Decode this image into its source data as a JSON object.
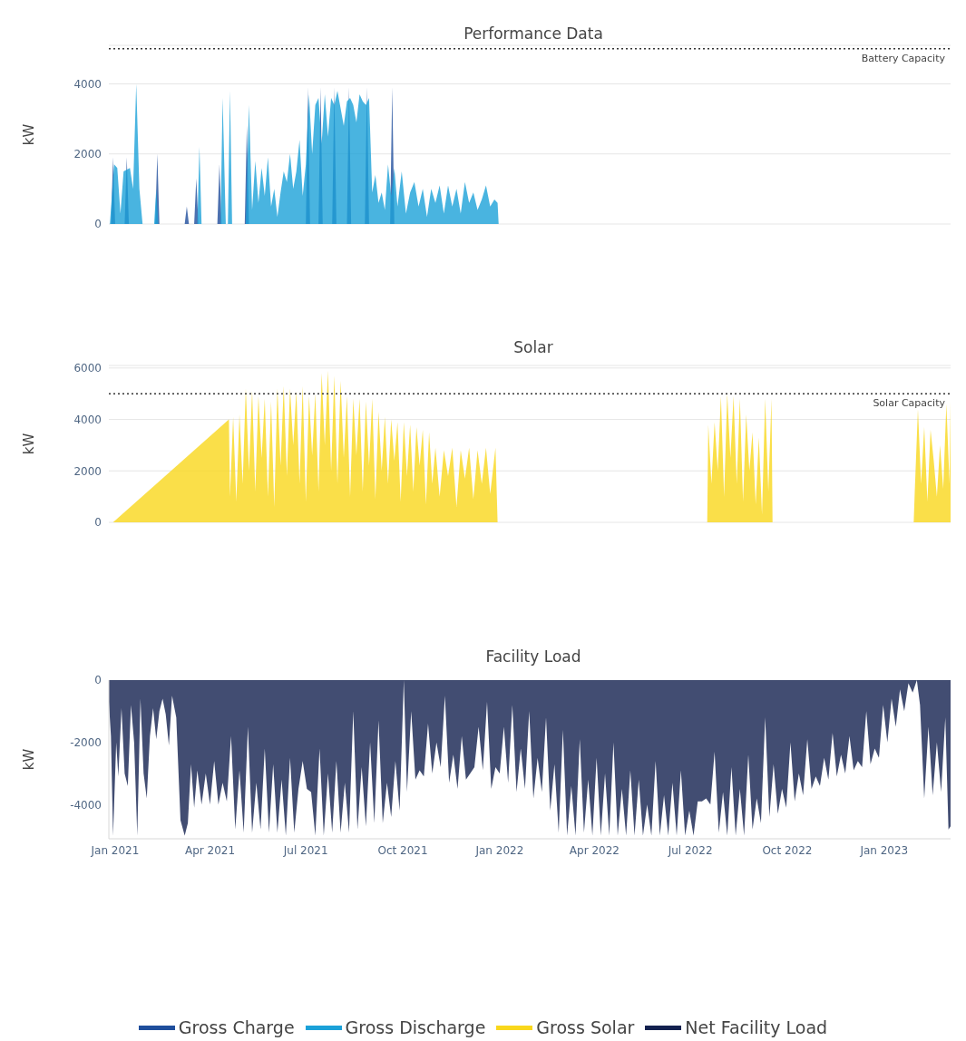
{
  "chart_data": [
    {
      "type": "area",
      "title": "Performance Data",
      "ylabel": "kW",
      "xlim": [
        "2020-12-26",
        "2023-03-05"
      ],
      "ylim": [
        0,
        5100
      ],
      "yticks": [
        0,
        2000,
        4000
      ],
      "grid": "y",
      "legend": "bottom",
      "tick_labels": "y",
      "ref_lines": [
        {
          "axis": "y",
          "value": 5000,
          "label": "Battery Capacity",
          "color": "#333333",
          "line_style": "dotted"
        }
      ],
      "series": [
        {
          "name": "Gross Charge",
          "color": "#1f4e9c",
          "x": [
            "2020-12-28",
            "2020-12-30",
            "2021-01-01",
            "2021-01-10",
            "2021-01-12",
            "2021-01-14",
            "2021-02-08",
            "2021-02-10",
            "2021-02-12",
            "2021-03-08",
            "2021-03-10",
            "2021-03-12",
            "2021-03-17",
            "2021-03-19",
            "2021-03-21",
            "2021-04-08",
            "2021-04-10",
            "2021-04-12",
            "2021-05-04",
            "2021-05-06",
            "2021-05-08",
            "2021-07-01",
            "2021-07-03",
            "2021-07-05",
            "2021-07-13",
            "2021-07-15",
            "2021-07-17",
            "2021-07-26",
            "2021-07-28",
            "2021-07-30",
            "2021-08-09",
            "2021-08-11",
            "2021-08-13",
            "2021-08-26",
            "2021-08-28",
            "2021-08-30",
            "2021-09-19",
            "2021-09-21",
            "2021-09-23",
            "2023-03-05"
          ],
          "values": [
            0,
            1900,
            0,
            0,
            1900,
            0,
            0,
            2000,
            0,
            0,
            500,
            0,
            0,
            1300,
            0,
            0,
            1700,
            0,
            0,
            2800,
            0,
            0,
            3900,
            0,
            0,
            3900,
            0,
            0,
            3900,
            0,
            0,
            3900,
            0,
            0,
            3900,
            0,
            0,
            3900,
            0,
            0
          ]
        },
        {
          "name": "Gross Discharge",
          "color": "#1ba1d8",
          "x": [
            "2020-12-27",
            "2020-12-31",
            "2021-01-03",
            "2021-01-06",
            "2021-01-09",
            "2021-01-15",
            "2021-01-18",
            "2021-01-21",
            "2021-01-24",
            "2021-01-27",
            "2021-02-07",
            "2021-02-09",
            "2021-02-11",
            "2021-03-20",
            "2021-03-22",
            "2021-03-24",
            "2021-04-11",
            "2021-04-13",
            "2021-04-16",
            "2021-04-18",
            "2021-04-20",
            "2021-04-22",
            "2021-05-05",
            "2021-05-08",
            "2021-05-11",
            "2021-05-14",
            "2021-05-17",
            "2021-05-20",
            "2021-05-23",
            "2021-05-26",
            "2021-05-29",
            "2021-06-01",
            "2021-06-04",
            "2021-06-07",
            "2021-06-10",
            "2021-06-13",
            "2021-06-16",
            "2021-06-19",
            "2021-06-22",
            "2021-06-25",
            "2021-06-28",
            "2021-07-01",
            "2021-07-04",
            "2021-07-07",
            "2021-07-10",
            "2021-07-13",
            "2021-07-16",
            "2021-07-19",
            "2021-07-22",
            "2021-07-25",
            "2021-07-28",
            "2021-07-31",
            "2021-08-03",
            "2021-08-06",
            "2021-08-09",
            "2021-08-12",
            "2021-08-15",
            "2021-08-18",
            "2021-08-21",
            "2021-08-24",
            "2021-08-27",
            "2021-08-30",
            "2021-09-02",
            "2021-09-05",
            "2021-09-08",
            "2021-09-11",
            "2021-09-14",
            "2021-09-17",
            "2021-09-20",
            "2021-09-23",
            "2021-09-26",
            "2021-09-30",
            "2021-10-04",
            "2021-10-08",
            "2021-10-12",
            "2021-10-16",
            "2021-10-20",
            "2021-10-24",
            "2021-10-28",
            "2021-11-01",
            "2021-11-05",
            "2021-11-09",
            "2021-11-13",
            "2021-11-17",
            "2021-11-21",
            "2021-11-25",
            "2021-11-29",
            "2021-12-03",
            "2021-12-07",
            "2021-12-11",
            "2021-12-15",
            "2021-12-19",
            "2021-12-23",
            "2021-12-27",
            "2021-12-30",
            "2021-12-31",
            "2023-03-05"
          ],
          "values": [
            0,
            1700,
            1600,
            300,
            1500,
            1600,
            1000,
            4000,
            1000,
            0,
            0,
            1000,
            0,
            0,
            2200,
            0,
            0,
            3600,
            0,
            0,
            3800,
            0,
            0,
            3400,
            400,
            1800,
            600,
            1600,
            800,
            1900,
            500,
            1000,
            200,
            900,
            1500,
            1200,
            2000,
            1000,
            1500,
            2400,
            800,
            1700,
            3700,
            2000,
            3400,
            3600,
            2300,
            3700,
            2500,
            3600,
            3400,
            3800,
            3300,
            2800,
            3500,
            3600,
            3400,
            2900,
            3700,
            3500,
            3400,
            3600,
            900,
            1400,
            600,
            900,
            400,
            1700,
            800,
            1600,
            500,
            1500,
            300,
            900,
            1200,
            500,
            1000,
            200,
            1000,
            600,
            1100,
            300,
            1100,
            500,
            1000,
            300,
            1200,
            600,
            900,
            400,
            700,
            1100,
            500,
            700,
            600,
            0,
            0
          ]
        }
      ]
    },
    {
      "type": "area",
      "title": "Solar",
      "ylabel": "kW",
      "xlim": [
        "2020-12-26",
        "2023-03-05"
      ],
      "ylim": [
        0,
        6100
      ],
      "yticks": [
        0,
        2000,
        4000,
        6000
      ],
      "grid": "y",
      "legend": "bottom",
      "tick_labels": "y",
      "ref_lines": [
        {
          "axis": "y",
          "value": 5000,
          "label": "Solar Capacity",
          "color": "#333333",
          "line_style": "dotted"
        }
      ],
      "series": [
        {
          "name": "Gross Solar",
          "color": "#f9d71c",
          "x": [
            "2020-12-30",
            "2021-04-19",
            "2021-04-20",
            "2021-04-23",
            "2021-04-26",
            "2021-04-29",
            "2021-05-02",
            "2021-05-05",
            "2021-05-08",
            "2021-05-11",
            "2021-05-14",
            "2021-05-17",
            "2021-05-20",
            "2021-05-23",
            "2021-05-26",
            "2021-05-29",
            "2021-06-01",
            "2021-06-04",
            "2021-06-07",
            "2021-06-10",
            "2021-06-13",
            "2021-06-16",
            "2021-06-19",
            "2021-06-22",
            "2021-06-25",
            "2021-06-28",
            "2021-07-01",
            "2021-07-04",
            "2021-07-07",
            "2021-07-10",
            "2021-07-13",
            "2021-07-16",
            "2021-07-19",
            "2021-07-22",
            "2021-07-25",
            "2021-07-28",
            "2021-07-31",
            "2021-08-03",
            "2021-08-06",
            "2021-08-09",
            "2021-08-12",
            "2021-08-15",
            "2021-08-18",
            "2021-08-21",
            "2021-08-24",
            "2021-08-27",
            "2021-08-30",
            "2021-09-02",
            "2021-09-05",
            "2021-09-08",
            "2021-09-11",
            "2021-09-14",
            "2021-09-17",
            "2021-09-20",
            "2021-09-23",
            "2021-09-26",
            "2021-09-29",
            "2021-10-02",
            "2021-10-05",
            "2021-10-08",
            "2021-10-11",
            "2021-10-14",
            "2021-10-17",
            "2021-10-20",
            "2021-10-23",
            "2021-10-26",
            "2021-10-29",
            "2021-11-01",
            "2021-11-05",
            "2021-11-09",
            "2021-11-13",
            "2021-11-17",
            "2021-11-21",
            "2021-11-25",
            "2021-11-29",
            "2021-12-03",
            "2021-12-07",
            "2021-12-11",
            "2021-12-15",
            "2021-12-19",
            "2021-12-23",
            "2021-12-28",
            "2021-12-30",
            "2022-07-17",
            "2022-07-18",
            "2022-07-21",
            "2022-07-24",
            "2022-07-27",
            "2022-07-30",
            "2022-08-02",
            "2022-08-05",
            "2022-08-08",
            "2022-08-11",
            "2022-08-14",
            "2022-08-17",
            "2022-08-20",
            "2022-08-23",
            "2022-08-26",
            "2022-08-29",
            "2022-09-01",
            "2022-09-04",
            "2022-09-07",
            "2022-09-10",
            "2022-09-13",
            "2022-09-16",
            "2022-09-17",
            "2023-01-29",
            "2023-01-30",
            "2023-02-02",
            "2023-02-05",
            "2023-02-08",
            "2023-02-11",
            "2023-02-14",
            "2023-02-17",
            "2023-02-20",
            "2023-02-23",
            "2023-02-26",
            "2023-03-01",
            "2023-03-04",
            "2023-03-05"
          ],
          "values": [
            0,
            4000,
            1000,
            4100,
            800,
            4200,
            1500,
            5200,
            2000,
            5100,
            1200,
            4900,
            2500,
            4800,
            1000,
            4700,
            600,
            5200,
            2200,
            5300,
            1800,
            5200,
            3000,
            5100,
            1500,
            5300,
            800,
            4900,
            2600,
            5000,
            1200,
            5800,
            3000,
            5900,
            2000,
            5700,
            1500,
            5500,
            2500,
            4900,
            1000,
            4800,
            2600,
            4800,
            1200,
            4700,
            2200,
            4800,
            900,
            4300,
            2000,
            4100,
            1500,
            4000,
            2400,
            3900,
            800,
            3900,
            1800,
            3800,
            1200,
            3700,
            2200,
            3600,
            700,
            3500,
            1500,
            2900,
            1000,
            2800,
            1800,
            2900,
            600,
            2800,
            1700,
            2900,
            900,
            2800,
            1500,
            2900,
            1100,
            2900,
            0,
            0,
            3800,
            1500,
            3900,
            2000,
            4900,
            1000,
            5000,
            2500,
            4900,
            1500,
            4800,
            800,
            4200,
            2000,
            3500,
            700,
            3300,
            300,
            4800,
            1200,
            4800,
            0,
            0,
            1200,
            4400,
            1500,
            3700,
            800,
            3600,
            2400,
            1000,
            3000,
            1300,
            4600,
            1500,
            4700
          ]
        }
      ]
    },
    {
      "type": "area",
      "title": "Facility Load",
      "ylabel": "kW",
      "xlim": [
        "2020-12-26",
        "2023-03-05"
      ],
      "xticks": [
        {
          "value": "2021-01-01",
          "label": "Jan 2021"
        },
        {
          "value": "2021-04-01",
          "label": "Apr 2021"
        },
        {
          "value": "2021-07-01",
          "label": "Jul 2021"
        },
        {
          "value": "2021-10-01",
          "label": "Oct 2021"
        },
        {
          "value": "2022-01-01",
          "label": "Jan 2022"
        },
        {
          "value": "2022-04-01",
          "label": "Apr 2022"
        },
        {
          "value": "2022-07-01",
          "label": "Jul 2022"
        },
        {
          "value": "2022-10-01",
          "label": "Oct 2022"
        },
        {
          "value": "2023-01-01",
          "label": "Jan 2023"
        }
      ],
      "ylim": [
        -5100,
        0
      ],
      "yticks": [
        -4000,
        -2000,
        0
      ],
      "legend": "bottom",
      "series": [
        {
          "name": "Net Facility Load",
          "color": "#13214f",
          "x": [
            "2020-12-26",
            "2020-12-28",
            "2020-12-30",
            "2021-01-02",
            "2021-01-04",
            "2021-01-07",
            "2021-01-10",
            "2021-01-13",
            "2021-01-16",
            "2021-01-19",
            "2021-01-22",
            "2021-01-25",
            "2021-01-28",
            "2021-01-31",
            "2021-02-03",
            "2021-02-06",
            "2021-02-09",
            "2021-02-12",
            "2021-02-15",
            "2021-02-18",
            "2021-02-21",
            "2021-02-24",
            "2021-02-28",
            "2021-03-04",
            "2021-03-08",
            "2021-03-11",
            "2021-03-14",
            "2021-03-17",
            "2021-03-20",
            "2021-03-24",
            "2021-03-28",
            "2021-04-01",
            "2021-04-05",
            "2021-04-09",
            "2021-04-13",
            "2021-04-17",
            "2021-04-21",
            "2021-04-25",
            "2021-04-29",
            "2021-05-03",
            "2021-05-07",
            "2021-05-11",
            "2021-05-15",
            "2021-05-19",
            "2021-05-23",
            "2021-05-27",
            "2021-05-31",
            "2021-06-04",
            "2021-06-08",
            "2021-06-12",
            "2021-06-16",
            "2021-06-20",
            "2021-06-24",
            "2021-06-28",
            "2021-07-02",
            "2021-07-06",
            "2021-07-10",
            "2021-07-14",
            "2021-07-18",
            "2021-07-22",
            "2021-07-26",
            "2021-07-30",
            "2021-08-03",
            "2021-08-07",
            "2021-08-11",
            "2021-08-15",
            "2021-08-19",
            "2021-08-23",
            "2021-08-27",
            "2021-08-31",
            "2021-09-04",
            "2021-09-08",
            "2021-09-12",
            "2021-09-16",
            "2021-09-20",
            "2021-09-24",
            "2021-09-28",
            "2021-10-02",
            "2021-10-05",
            "2021-10-09",
            "2021-10-13",
            "2021-10-17",
            "2021-10-21",
            "2021-10-25",
            "2021-10-29",
            "2021-11-02",
            "2021-11-06",
            "2021-11-10",
            "2021-11-14",
            "2021-11-18",
            "2021-11-22",
            "2021-11-26",
            "2021-11-30",
            "2021-12-04",
            "2021-12-08",
            "2021-12-12",
            "2021-12-16",
            "2021-12-20",
            "2021-12-24",
            "2021-12-28",
            "2022-01-01",
            "2022-01-05",
            "2022-01-09",
            "2022-01-13",
            "2022-01-17",
            "2022-01-21",
            "2022-01-25",
            "2022-01-29",
            "2022-02-02",
            "2022-02-06",
            "2022-02-10",
            "2022-02-14",
            "2022-02-18",
            "2022-02-22",
            "2022-02-26",
            "2022-03-02",
            "2022-03-06",
            "2022-03-10",
            "2022-03-14",
            "2022-03-18",
            "2022-03-22",
            "2022-03-26",
            "2022-03-30",
            "2022-04-03",
            "2022-04-07",
            "2022-04-11",
            "2022-04-15",
            "2022-04-19",
            "2022-04-23",
            "2022-04-27",
            "2022-05-01",
            "2022-05-05",
            "2022-05-09",
            "2022-05-13",
            "2022-05-17",
            "2022-05-21",
            "2022-05-25",
            "2022-05-29",
            "2022-06-02",
            "2022-06-06",
            "2022-06-10",
            "2022-06-14",
            "2022-06-18",
            "2022-06-22",
            "2022-06-26",
            "2022-06-30",
            "2022-07-04",
            "2022-07-08",
            "2022-07-12",
            "2022-07-16",
            "2022-07-20",
            "2022-07-24",
            "2022-07-28",
            "2022-08-01",
            "2022-08-05",
            "2022-08-09",
            "2022-08-13",
            "2022-08-17",
            "2022-08-21",
            "2022-08-25",
            "2022-08-29",
            "2022-09-02",
            "2022-09-06",
            "2022-09-10",
            "2022-09-14",
            "2022-09-18",
            "2022-09-22",
            "2022-09-26",
            "2022-09-30",
            "2022-10-04",
            "2022-10-08",
            "2022-10-12",
            "2022-10-16",
            "2022-10-20",
            "2022-10-24",
            "2022-10-28",
            "2022-11-01",
            "2022-11-05",
            "2022-11-09",
            "2022-11-13",
            "2022-11-17",
            "2022-11-21",
            "2022-11-25",
            "2022-11-29",
            "2022-12-03",
            "2022-12-07",
            "2022-12-11",
            "2022-12-15",
            "2022-12-19",
            "2022-12-23",
            "2022-12-27",
            "2022-12-31",
            "2023-01-04",
            "2023-01-08",
            "2023-01-12",
            "2023-01-16",
            "2023-01-20",
            "2023-01-24",
            "2023-01-28",
            "2023-02-01",
            "2023-02-04",
            "2023-02-08",
            "2023-02-12",
            "2023-02-16",
            "2023-02-20",
            "2023-02-24",
            "2023-02-28",
            "2023-03-03",
            "2023-03-05"
          ],
          "values": [
            -700,
            -1800,
            -5000,
            -2000,
            -3100,
            -900,
            -3000,
            -3400,
            -800,
            -2000,
            -5000,
            -600,
            -3000,
            -3800,
            -1800,
            -900,
            -1900,
            -1000,
            -600,
            -1100,
            -2100,
            -500,
            -1200,
            -4500,
            -5000,
            -4600,
            -2700,
            -4100,
            -2900,
            -4000,
            -3000,
            -4000,
            -2600,
            -4000,
            -3300,
            -3900,
            -1800,
            -4800,
            -2900,
            -4900,
            -1500,
            -4900,
            -3300,
            -4800,
            -2200,
            -4900,
            -2700,
            -4900,
            -3200,
            -5000,
            -2500,
            -4900,
            -3500,
            -2600,
            -3500,
            -3600,
            -5000,
            -2200,
            -5000,
            -3000,
            -4900,
            -2600,
            -4900,
            -3300,
            -4900,
            -1000,
            -4800,
            -2800,
            -4700,
            -2000,
            -4600,
            -1300,
            -4600,
            -3300,
            -4400,
            -2600,
            -4200,
            0,
            -3600,
            -1000,
            -3200,
            -2900,
            -3100,
            -1400,
            -3000,
            -2000,
            -2800,
            -500,
            -3300,
            -2400,
            -3500,
            -1800,
            -3200,
            -3000,
            -2800,
            -1500,
            -2900,
            -700,
            -3500,
            -2800,
            -3000,
            -1500,
            -3300,
            -800,
            -3600,
            -2200,
            -3500,
            -1000,
            -3800,
            -2500,
            -3600,
            -1200,
            -4200,
            -2700,
            -4900,
            -1600,
            -5000,
            -3400,
            -5000,
            -1900,
            -4900,
            -3200,
            -5000,
            -2500,
            -5000,
            -3000,
            -5000,
            -2000,
            -5000,
            -3500,
            -5000,
            -2900,
            -5000,
            -3200,
            -5000,
            -4000,
            -5000,
            -2600,
            -5000,
            -3700,
            -5000,
            -3300,
            -5000,
            -2900,
            -5000,
            -4200,
            -5000,
            -3900,
            -3900,
            -3800,
            -4000,
            -2300,
            -4900,
            -3600,
            -5000,
            -2800,
            -5000,
            -3500,
            -5000,
            -2400,
            -4800,
            -3800,
            -4600,
            -1200,
            -4400,
            -2700,
            -4300,
            -3500,
            -4100,
            -2000,
            -3900,
            -3000,
            -3700,
            -1900,
            -3500,
            -3100,
            -3400,
            -2500,
            -3200,
            -1700,
            -3100,
            -2400,
            -3000,
            -1800,
            -2900,
            -2600,
            -2800,
            -1000,
            -2700,
            -2200,
            -2500,
            -800,
            -2000,
            -600,
            -1500,
            -300,
            -1000,
            -100,
            -400,
            0,
            -800,
            -3800,
            -1500,
            -3700,
            -2000,
            -3600,
            -1200,
            -4800,
            -4700
          ]
        }
      ]
    }
  ]
}
